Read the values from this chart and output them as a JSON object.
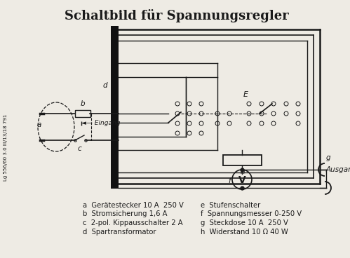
{
  "title": "Schaltbild für Spannungsregler",
  "title_fontsize": 13,
  "bg_color": "#eeebe4",
  "line_color": "#1a1a1a",
  "text_color": "#1a1a1a",
  "sidebar_text": "Lg 556/60 3.0 III/13/18 791",
  "legend_left": [
    "a  Gerätestecker 10 A  250 V",
    "b  Stromsicherung 1,6 A",
    "c  2-pol. Kippausschalter 2 A",
    "d  Spartransformator"
  ],
  "legend_right": [
    "e  Stufenschalter",
    "f  Spannungsmesser 0-250 V",
    "g  Steckdose 10 A  250 V",
    "h  Widerstand 10 Ω 40 W"
  ],
  "legend_fontsize": 7.2,
  "figsize": [
    4.99,
    3.68
  ],
  "dpi": 100
}
